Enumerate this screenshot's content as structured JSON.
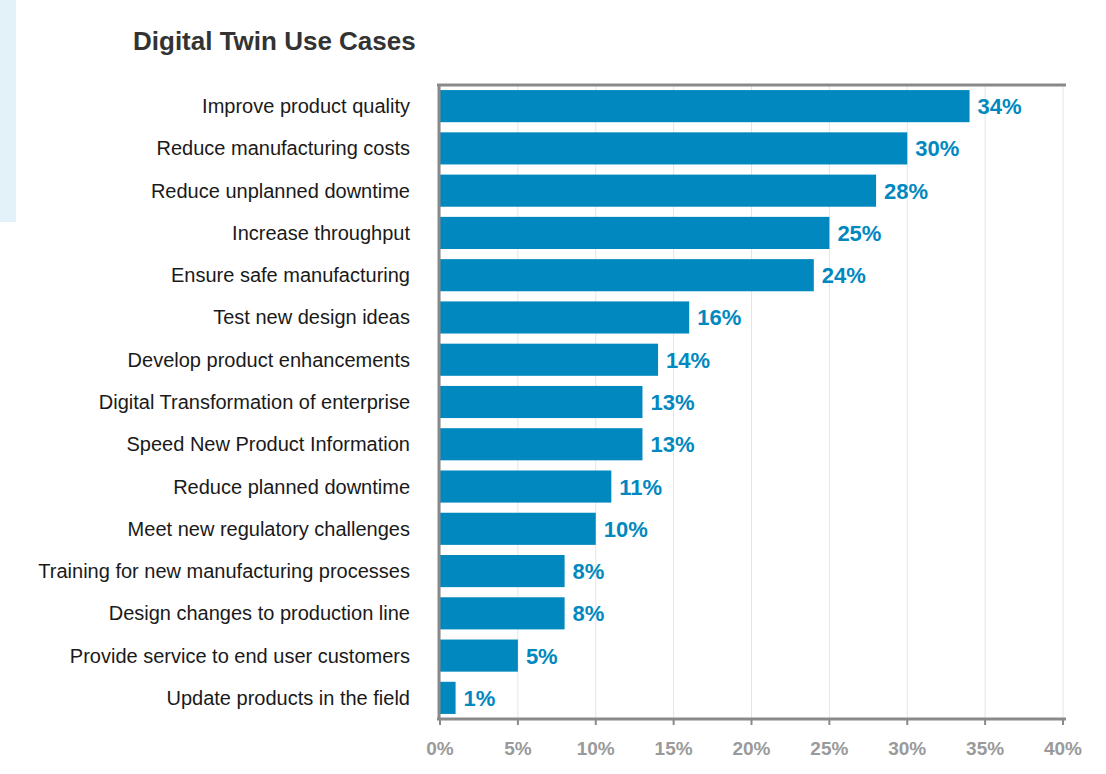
{
  "chart_data": {
    "type": "bar",
    "title": "Digital Twin Use Cases",
    "orientation": "horizontal",
    "categories": [
      "Improve product quality",
      "Reduce manufacturing costs",
      "Reduce unplanned downtime",
      "Increase throughput",
      "Ensure safe manufacturing",
      "Test new design ideas",
      "Develop product enhancements",
      "Digital Transformation of enterprise",
      "Speed New Product Information",
      "Reduce planned downtime",
      "Meet new regulatory challenges",
      "Training for new manufacturing processes",
      "Design changes to production line",
      "Provide service to end user customers",
      "Update products in the field"
    ],
    "values": [
      34,
      30,
      28,
      25,
      24,
      16,
      14,
      13,
      13,
      11,
      10,
      8,
      8,
      5,
      1
    ],
    "value_labels": [
      "34%",
      "30%",
      "28%",
      "25%",
      "24%",
      "16%",
      "14%",
      "13%",
      "13%",
      "11%",
      "10%",
      "8%",
      "8%",
      "5%",
      "1%"
    ],
    "color": "#0088bf",
    "xlim": [
      0,
      40
    ],
    "xticks": [
      {
        "value": 0,
        "label": "0%"
      },
      {
        "value": 5,
        "label": "5%"
      },
      {
        "value": 10,
        "label": "10%"
      },
      {
        "value": 15,
        "label": "15%"
      },
      {
        "value": 20,
        "label": "20%"
      },
      {
        "value": 25,
        "label": "25%"
      },
      {
        "value": 30,
        "label": "30%"
      },
      {
        "value": 35,
        "label": "35%"
      },
      {
        "value": 40,
        "label": "40%"
      }
    ],
    "grid": true,
    "data_labels": true
  }
}
